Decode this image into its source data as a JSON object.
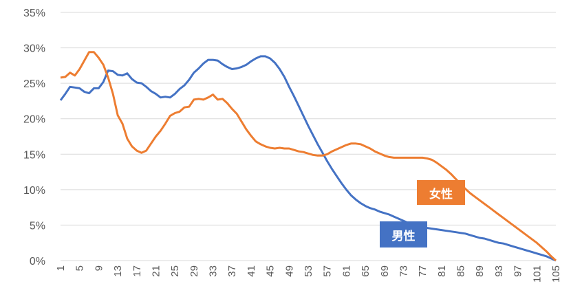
{
  "chart_data": {
    "type": "line",
    "title": "",
    "xlabel": "",
    "ylabel": "",
    "ylim": [
      0,
      35
    ],
    "yticks": [
      "0%",
      "5%",
      "10%",
      "15%",
      "20%",
      "25%",
      "30%",
      "35%"
    ],
    "xlim": [
      1,
      105
    ],
    "xtick_step": 4,
    "grid": "horizontal",
    "legend": "inline labels",
    "series": [
      {
        "name": "男性",
        "color": "#4472C4",
        "values": [
          22.6,
          23.5,
          24.5,
          24.4,
          24.3,
          23.8,
          23.6,
          24.3,
          24.3,
          25.2,
          26.8,
          26.7,
          26.2,
          26.1,
          26.4,
          25.6,
          25.1,
          25.0,
          24.5,
          23.9,
          23.5,
          23.0,
          23.1,
          23.0,
          23.5,
          24.2,
          24.7,
          25.5,
          26.5,
          27.1,
          27.8,
          28.3,
          28.3,
          28.2,
          27.7,
          27.3,
          27.0,
          27.1,
          27.3,
          27.6,
          28.1,
          28.5,
          28.8,
          28.8,
          28.5,
          27.9,
          27.0,
          25.9,
          24.5,
          23.2,
          21.8,
          20.4,
          19.0,
          17.7,
          16.4,
          15.2,
          14.0,
          12.9,
          11.9,
          10.9,
          10.0,
          9.2,
          8.6,
          8.1,
          7.7,
          7.4,
          7.2,
          6.9,
          6.7,
          6.5,
          6.2,
          5.9,
          5.6,
          5.3,
          5.1,
          4.9,
          4.7,
          4.6,
          4.5,
          4.4,
          4.3,
          4.2,
          4.1,
          4.0,
          3.9,
          3.8,
          3.6,
          3.4,
          3.2,
          3.1,
          2.9,
          2.7,
          2.5,
          2.4,
          2.2,
          2.0,
          1.8,
          1.6,
          1.4,
          1.2,
          1.0,
          0.8,
          0.6,
          0.3,
          0.0
        ]
      },
      {
        "name": "女性",
        "color": "#ED7D31",
        "values": [
          25.8,
          25.9,
          26.5,
          26.1,
          27.0,
          28.2,
          29.4,
          29.4,
          28.6,
          27.6,
          25.8,
          23.5,
          20.5,
          19.3,
          17.2,
          16.1,
          15.5,
          15.2,
          15.5,
          16.5,
          17.5,
          18.3,
          19.3,
          20.4,
          20.8,
          21.0,
          21.6,
          21.7,
          22.7,
          22.8,
          22.7,
          23.0,
          23.4,
          22.7,
          22.8,
          22.2,
          21.4,
          20.7,
          19.6,
          18.5,
          17.6,
          16.8,
          16.4,
          16.1,
          15.9,
          15.8,
          15.9,
          15.8,
          15.8,
          15.6,
          15.4,
          15.3,
          15.1,
          14.9,
          14.8,
          14.8,
          15.0,
          15.4,
          15.7,
          16.0,
          16.3,
          16.5,
          16.5,
          16.4,
          16.1,
          15.8,
          15.4,
          15.1,
          14.8,
          14.6,
          14.5,
          14.5,
          14.5,
          14.5,
          14.5,
          14.5,
          14.5,
          14.4,
          14.2,
          13.8,
          13.3,
          12.8,
          12.2,
          11.5,
          10.8,
          10.1,
          9.5,
          9.0,
          8.5,
          8.0,
          7.5,
          7.0,
          6.5,
          6.0,
          5.5,
          5.0,
          4.5,
          4.0,
          3.5,
          3.0,
          2.5,
          1.9,
          1.3,
          0.6,
          0.0
        ]
      }
    ]
  }
}
